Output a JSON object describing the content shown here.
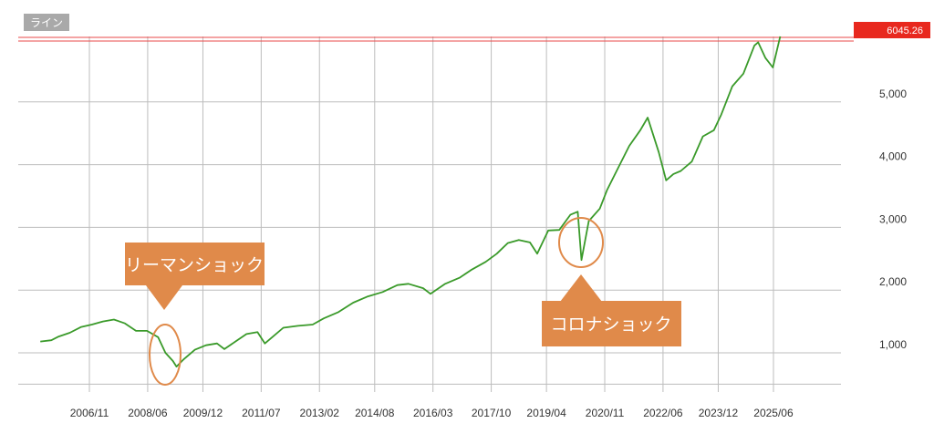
{
  "mode_label": "ライン",
  "last_value_label": "6045.26",
  "colors": {
    "line": "#3a9a2a",
    "grid": "#bdbdbd",
    "ref_line": "#e84a4a",
    "last_badge": "#e8281e",
    "callout": "#e08a4a",
    "mode_badge": "#a9a9a9"
  },
  "callouts": {
    "lehman": "リーマンショック",
    "corona": "コロナショック"
  },
  "chart_data": {
    "type": "line",
    "x_ticks": [
      "2006/11",
      "2008/06",
      "2009/12",
      "2011/07",
      "2013/02",
      "2014/08",
      "2016/03",
      "2017/10",
      "2019/04",
      "2020/11",
      "2022/06",
      "2023/12",
      "2025/06"
    ],
    "y_ticks": [
      "1,000",
      "2,000",
      "3,000",
      "4,000",
      "5,000"
    ],
    "ylim": [
      500,
      6050
    ],
    "grid": true,
    "reference_value": 6045.26,
    "series": [
      {
        "x": [
          2005.5,
          2005.8,
          2006.0,
          2006.3,
          2006.6,
          2006.9,
          2007.2,
          2007.5,
          2007.8,
          2008.1,
          2008.4,
          2008.7,
          2008.9,
          2009.1,
          2009.2,
          2009.4,
          2009.7,
          2010.0,
          2010.3,
          2010.5,
          2010.8,
          2011.1,
          2011.4,
          2011.6,
          2011.8,
          2012.1,
          2012.5,
          2012.9,
          2013.2,
          2013.6,
          2014.0,
          2014.4,
          2014.8,
          2015.2,
          2015.5,
          2015.9,
          2016.1,
          2016.5,
          2016.9,
          2017.2,
          2017.6,
          2017.9,
          2018.2,
          2018.5,
          2018.8,
          2019.0,
          2019.3,
          2019.6,
          2019.9,
          2020.1,
          2020.2,
          2020.4,
          2020.7,
          2020.9,
          2021.2,
          2021.5,
          2021.8,
          2022.0,
          2022.3,
          2022.5,
          2022.7,
          2022.9,
          2023.2,
          2023.5,
          2023.8,
          2024.0,
          2024.3,
          2024.6,
          2024.9,
          2025.0,
          2025.2,
          2025.4,
          2025.6
        ],
        "values": [
          1180,
          1200,
          1260,
          1320,
          1410,
          1450,
          1500,
          1530,
          1470,
          1350,
          1350,
          1250,
          1000,
          870,
          780,
          900,
          1050,
          1120,
          1150,
          1060,
          1180,
          1300,
          1330,
          1150,
          1250,
          1400,
          1430,
          1450,
          1550,
          1650,
          1800,
          1900,
          1970,
          2080,
          2100,
          2030,
          1940,
          2100,
          2200,
          2320,
          2450,
          2580,
          2750,
          2800,
          2760,
          2580,
          2950,
          2960,
          3200,
          3250,
          2480,
          3100,
          3300,
          3600,
          3950,
          4300,
          4550,
          4750,
          4200,
          3750,
          3850,
          3900,
          4050,
          4450,
          4550,
          4800,
          5250,
          5450,
          5900,
          5950,
          5700,
          5550,
          6045
        ]
      }
    ]
  }
}
